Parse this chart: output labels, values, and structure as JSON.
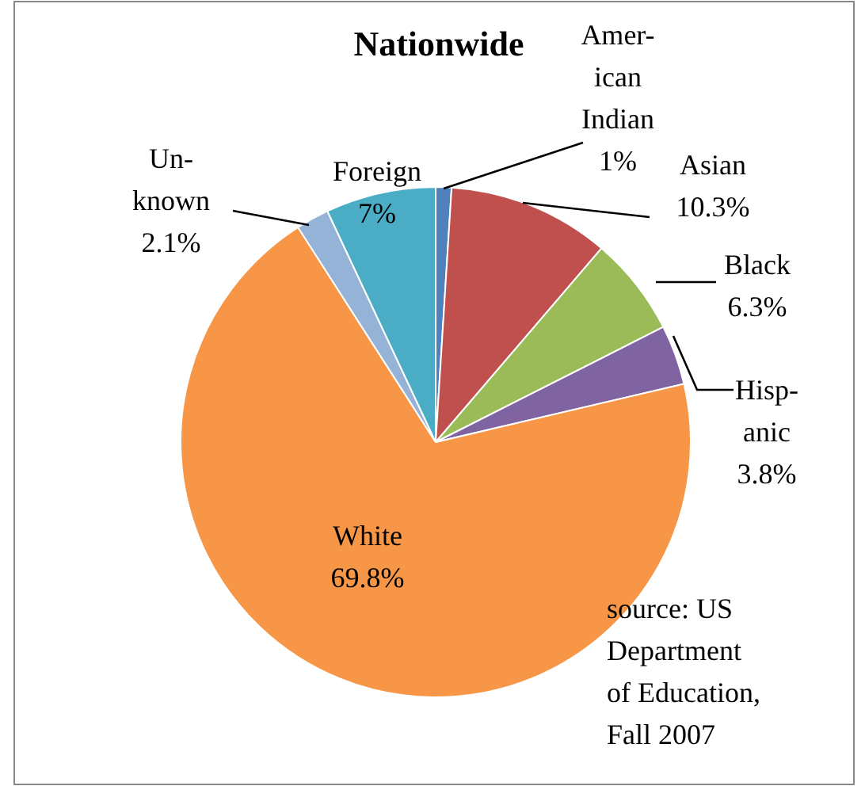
{
  "chart_data": {
    "type": "pie",
    "title": "Nationwide",
    "categories": [
      "Amer-\nican\nIndian",
      "Asian",
      "Black",
      "Hisp-\nanic",
      "White",
      "Un-\nknown",
      "Foreign"
    ],
    "values": [
      1,
      10.3,
      6.3,
      3.8,
      69.8,
      2.1,
      7
    ],
    "value_labels": [
      "1%",
      "10.3%",
      "6.3%",
      "3.8%",
      "69.8%",
      "2.1%",
      "7%"
    ],
    "colors": [
      "#4f81bd",
      "#c0504d",
      "#9bbb59",
      "#8064a2",
      "#f79646",
      "#95b3d7",
      "#4bacc6"
    ],
    "annotations": [
      "source: US\nDepartment\nof Education,\nFall 2007"
    ]
  }
}
